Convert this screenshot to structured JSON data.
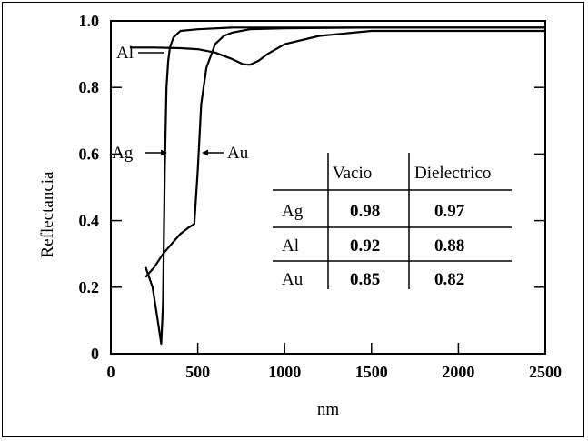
{
  "chart_data": {
    "type": "line",
    "xlabel": "nm",
    "ylabel": "Reflectancia",
    "xlim": [
      0,
      2500
    ],
    "ylim": [
      0,
      1.0
    ],
    "x_ticks": [
      0,
      500,
      1000,
      1500,
      2000,
      2500
    ],
    "x_tick_labels": [
      "0",
      "500",
      "1000",
      "1500",
      "2000",
      "2500"
    ],
    "y_ticks": [
      0,
      0.2,
      0.4,
      0.6,
      0.8,
      1.0
    ],
    "y_tick_labels": [
      "0",
      "0.2",
      "0.4",
      "0.6",
      "0.8",
      "1.0"
    ],
    "grid": false,
    "series": [
      {
        "name": "Ag",
        "x": [
          200,
          240,
          270,
          290,
          300,
          310,
          320,
          330,
          340,
          360,
          400,
          500,
          700,
          1000,
          1500,
          2500
        ],
        "y": [
          0.26,
          0.2,
          0.1,
          0.03,
          0.15,
          0.55,
          0.8,
          0.88,
          0.92,
          0.95,
          0.97,
          0.975,
          0.98,
          0.98,
          0.98,
          0.98
        ]
      },
      {
        "name": "Al",
        "x": [
          110,
          250,
          400,
          500,
          600,
          700,
          760,
          800,
          850,
          900,
          1000,
          1200,
          1500,
          2000,
          2500
        ],
        "y": [
          0.92,
          0.92,
          0.918,
          0.915,
          0.905,
          0.885,
          0.87,
          0.868,
          0.88,
          0.9,
          0.93,
          0.955,
          0.97,
          0.97,
          0.97
        ]
      },
      {
        "name": "Au",
        "x": [
          200,
          250,
          300,
          350,
          400,
          450,
          480,
          500,
          520,
          550,
          600,
          650,
          700,
          800,
          1000,
          1500,
          2500
        ],
        "y": [
          0.23,
          0.26,
          0.3,
          0.33,
          0.36,
          0.38,
          0.39,
          0.55,
          0.75,
          0.86,
          0.93,
          0.955,
          0.965,
          0.975,
          0.978,
          0.98,
          0.98
        ]
      }
    ],
    "annotations": [
      {
        "text": "Al",
        "series": "Al"
      },
      {
        "text": "Ag",
        "series": "Ag"
      },
      {
        "text": "Au",
        "series": "Au"
      }
    ],
    "table": {
      "headers": [
        "",
        "Vacio",
        "Dielectrico"
      ],
      "rows": [
        [
          "Ag",
          "0.98",
          "0.97"
        ],
        [
          "Al",
          "0.92",
          "0.88"
        ],
        [
          "Au",
          "0.85",
          "0.82"
        ]
      ]
    }
  }
}
